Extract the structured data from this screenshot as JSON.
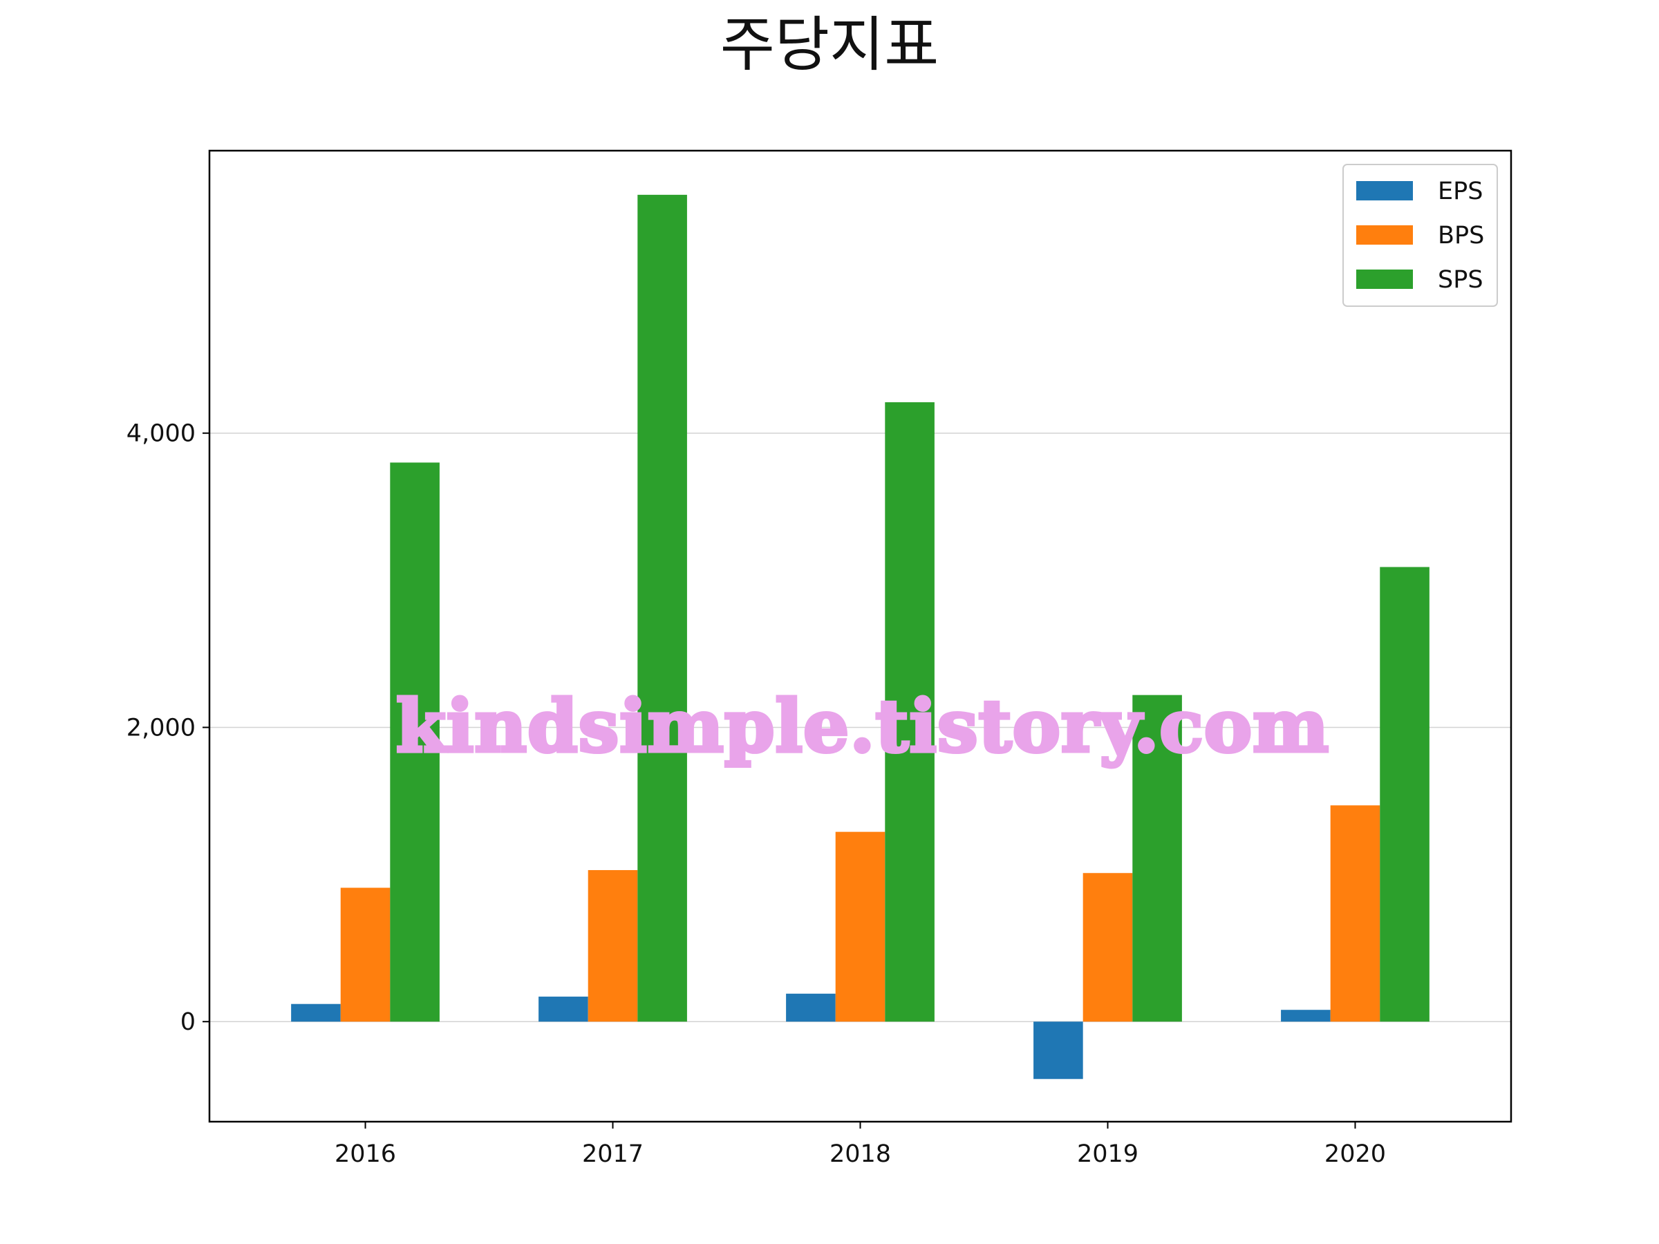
{
  "title": "주당지표",
  "watermark": "kindsimple.tistory.com",
  "chart_data": {
    "type": "bar",
    "title": "주당지표",
    "xlabel": "",
    "ylabel": "",
    "categories": [
      "2016",
      "2017",
      "2018",
      "2019",
      "2020"
    ],
    "series": [
      {
        "name": "EPS",
        "color": "#1f77b4",
        "values": [
          120,
          170,
          190,
          -390,
          80
        ]
      },
      {
        "name": "BPS",
        "color": "#ff7f0e",
        "values": [
          910,
          1030,
          1290,
          1010,
          1470
        ]
      },
      {
        "name": "SPS",
        "color": "#2ca02c",
        "values": [
          3800,
          5620,
          4210,
          2220,
          3090
        ]
      }
    ],
    "yticks": [
      0,
      2000,
      4000
    ],
    "ytick_labels": [
      "0",
      "2,000",
      "4,000"
    ],
    "ylim": [
      -680,
      5920
    ],
    "grid": "horizontal",
    "legend_position": "top-right"
  }
}
